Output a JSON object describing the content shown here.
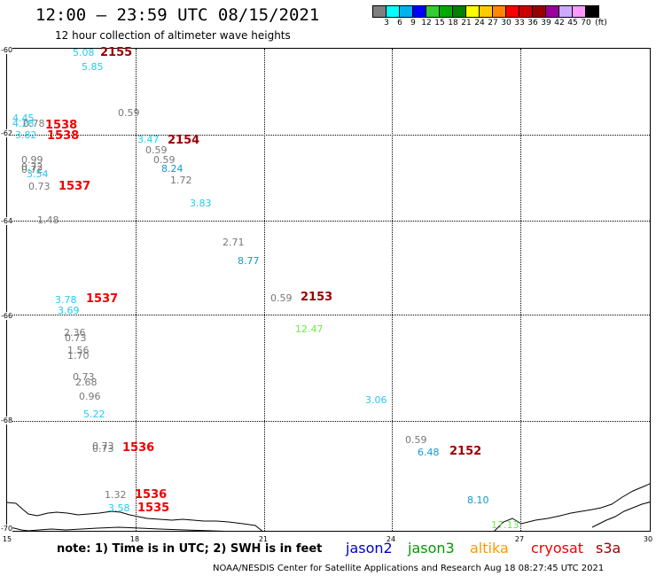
{
  "header": {
    "title": "12:00 – 23:59 UTC 08/15/2021",
    "subtitle": "12 hour collection of altimeter wave heights"
  },
  "legend_scale": {
    "colors": [
      "#7f7f7f",
      "#00ffff",
      "#00b2ee",
      "#0000ff",
      "#33cc33",
      "#00aa00",
      "#007f00",
      "#ffff00",
      "#ffcc00",
      "#ff8800",
      "#ff0000",
      "#cc0000",
      "#990000",
      "#990099",
      "#ccaaff",
      "#ff99ff",
      "#000000"
    ],
    "labels": [
      "3",
      "6",
      "9",
      "12",
      "15",
      "18",
      "21",
      "24",
      "27",
      "30",
      "33",
      "36",
      "39",
      "42",
      "45",
      "70",
      "(ft)"
    ]
  },
  "axes": {
    "lat_labels": [
      "-60",
      "-62",
      "-64",
      "-66",
      "-68",
      "-70"
    ],
    "lon_labels": [
      "15",
      "18",
      "21",
      "24",
      "27",
      "30"
    ]
  },
  "points": [
    {
      "text": "5.08",
      "color": "#22ccee"
    },
    {
      "text": "5.85",
      "color": "#22ccee"
    },
    {
      "text": "0.59",
      "color": "#777777"
    },
    {
      "text": "4.45",
      "color": "#22ccee"
    },
    {
      "text": "4.28",
      "color": "#22ccee"
    },
    {
      "text": "0.78",
      "color": "#777777"
    },
    {
      "text": "3.82",
      "color": "#22ccee"
    },
    {
      "text": "3.47",
      "color": "#22ccee"
    },
    {
      "text": "0.59",
      "color": "#777777"
    },
    {
      "text": "0.59",
      "color": "#777777"
    },
    {
      "text": "8.24",
      "color": "#1199cc"
    },
    {
      "text": "1.72",
      "color": "#777777"
    },
    {
      "text": "0.99",
      "color": "#777777"
    },
    {
      "text": "0.72",
      "color": "#777777"
    },
    {
      "text": "0.72",
      "color": "#777777"
    },
    {
      "text": "3.54",
      "color": "#22ccee"
    },
    {
      "text": "0.73",
      "color": "#777777"
    },
    {
      "text": "3.83",
      "color": "#22ccee"
    },
    {
      "text": "1.48",
      "color": "#777777"
    },
    {
      "text": "2.71",
      "color": "#777777"
    },
    {
      "text": "8.77",
      "color": "#1199cc"
    },
    {
      "text": "0.59",
      "color": "#777777"
    },
    {
      "text": "3.78",
      "color": "#22ccee"
    },
    {
      "text": "3.69",
      "color": "#22ccee"
    },
    {
      "text": "12.47",
      "color": "#66ee44"
    },
    {
      "text": "2.36",
      "color": "#777777"
    },
    {
      "text": "0.73",
      "color": "#777777"
    },
    {
      "text": "1.56",
      "color": "#777777"
    },
    {
      "text": "1.70",
      "color": "#777777"
    },
    {
      "text": "0.73",
      "color": "#777777"
    },
    {
      "text": "2.68",
      "color": "#777777"
    },
    {
      "text": "0.96",
      "color": "#777777"
    },
    {
      "text": "3.06",
      "color": "#22ccee"
    },
    {
      "text": "5.22",
      "color": "#22ccee"
    },
    {
      "text": "0.59",
      "color": "#777777"
    },
    {
      "text": "6.48",
      "color": "#1199cc"
    },
    {
      "text": "0.73",
      "color": "#777777"
    },
    {
      "text": "0.73",
      "color": "#777777"
    },
    {
      "text": "1.32",
      "color": "#777777"
    },
    {
      "text": "3.58",
      "color": "#22ccee"
    },
    {
      "text": "8.10",
      "color": "#1199cc"
    },
    {
      "text": "17.13",
      "color": "#66ee44"
    }
  ],
  "passes": [
    {
      "text": "2155",
      "color": "#990000"
    },
    {
      "text": "1538",
      "color": "#ee0000"
    },
    {
      "text": "1538",
      "color": "#ee0000"
    },
    {
      "text": "2154",
      "color": "#990000"
    },
    {
      "text": "1537",
      "color": "#ee0000"
    },
    {
      "text": "2153",
      "color": "#990000"
    },
    {
      "text": "1537",
      "color": "#ee0000"
    },
    {
      "text": "2152",
      "color": "#990000"
    },
    {
      "text": "1536",
      "color": "#ee0000"
    },
    {
      "text": "1536",
      "color": "#ee0000"
    },
    {
      "text": "1535",
      "color": "#ee0000"
    }
  ],
  "footer": {
    "note": "note:  1) Time is in UTC;  2) SWH is in feet",
    "satellites": [
      {
        "name": "jason2",
        "color": "#0000cc"
      },
      {
        "name": "jason3",
        "color": "#009900"
      },
      {
        "name": "altika",
        "color": "#ff9900"
      },
      {
        "name": "cryosat",
        "color": "#ee0000"
      },
      {
        "name": "s3a",
        "color": "#990000"
      }
    ],
    "credit": "NOAA/NESDIS Center for Satellite Applications and Research    Aug 18 08:27:45 UTC 2021"
  }
}
